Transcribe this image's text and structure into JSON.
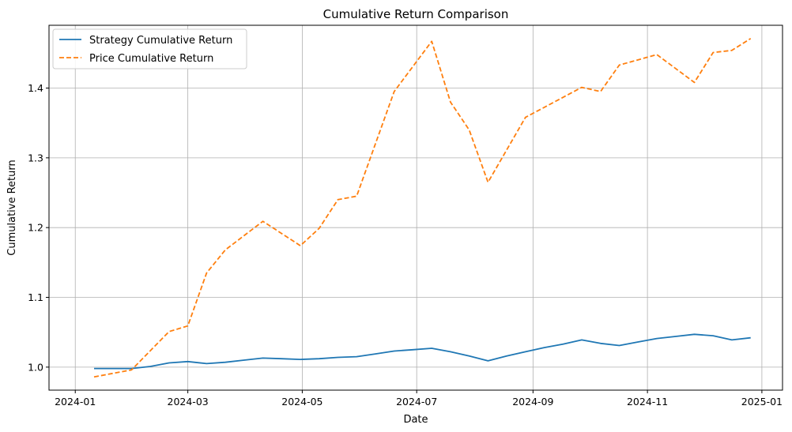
{
  "chart_data": {
    "type": "line",
    "title": "Cumulative Return Comparison",
    "xlabel": "Date",
    "ylabel": "Cumulative Return",
    "x_ticks": [
      "2024-01",
      "2024-03",
      "2024-05",
      "2024-07",
      "2024-09",
      "2024-11",
      "2025-01"
    ],
    "y_ticks": [
      "1.0",
      "1.1",
      "1.2",
      "1.3",
      "1.4"
    ],
    "xlim": [
      "2023-12-18",
      "2025-01-12"
    ],
    "ylim": [
      0.967,
      1.49
    ],
    "grid": true,
    "legend_position": "top-left",
    "series": [
      {
        "name": "Strategy Cumulative Return",
        "color": "#1f77b4",
        "style": "solid",
        "x": [
          "2024-01-11",
          "2024-01-21",
          "2024-01-31",
          "2024-02-10",
          "2024-02-20",
          "2024-03-01",
          "2024-03-11",
          "2024-03-21",
          "2024-03-31",
          "2024-04-10",
          "2024-04-20",
          "2024-04-30",
          "2024-05-10",
          "2024-05-20",
          "2024-05-30",
          "2024-06-09",
          "2024-06-19",
          "2024-06-29",
          "2024-07-09",
          "2024-07-19",
          "2024-07-29",
          "2024-08-08",
          "2024-08-18",
          "2024-08-28",
          "2024-09-07",
          "2024-09-17",
          "2024-09-27",
          "2024-10-07",
          "2024-10-17",
          "2024-10-27",
          "2024-11-06",
          "2024-11-16",
          "2024-11-26",
          "2024-12-06",
          "2024-12-16",
          "2024-12-26"
        ],
        "y": [
          0.998,
          0.998,
          0.998,
          1.001,
          1.006,
          1.008,
          1.005,
          1.007,
          1.01,
          1.013,
          1.012,
          1.011,
          1.012,
          1.014,
          1.015,
          1.019,
          1.023,
          1.025,
          1.027,
          1.022,
          1.016,
          1.009,
          1.016,
          1.022,
          1.028,
          1.033,
          1.039,
          1.034,
          1.031,
          1.036,
          1.041,
          1.044,
          1.047,
          1.045,
          1.039,
          1.042
        ]
      },
      {
        "name": "Price Cumulative Return",
        "color": "#ff7f0e",
        "style": "dashed",
        "x": [
          "2024-01-11",
          "2024-01-31",
          "2024-02-20",
          "2024-03-01",
          "2024-03-11",
          "2024-03-21",
          "2024-04-10",
          "2024-04-30",
          "2024-05-10",
          "2024-05-20",
          "2024-05-30",
          "2024-06-19",
          "2024-07-09",
          "2024-07-19",
          "2024-07-29",
          "2024-08-08",
          "2024-08-28",
          "2024-09-27",
          "2024-10-07",
          "2024-10-17",
          "2024-11-06",
          "2024-11-26",
          "2024-12-06",
          "2024-12-16",
          "2024-12-26"
        ],
        "y": [
          0.986,
          0.996,
          1.051,
          1.059,
          1.135,
          1.168,
          1.209,
          1.174,
          1.199,
          1.24,
          1.245,
          1.395,
          1.467,
          1.38,
          1.34,
          1.265,
          1.358,
          1.401,
          1.395,
          1.433,
          1.448,
          1.408,
          1.451,
          1.454,
          1.471
        ]
      }
    ]
  }
}
